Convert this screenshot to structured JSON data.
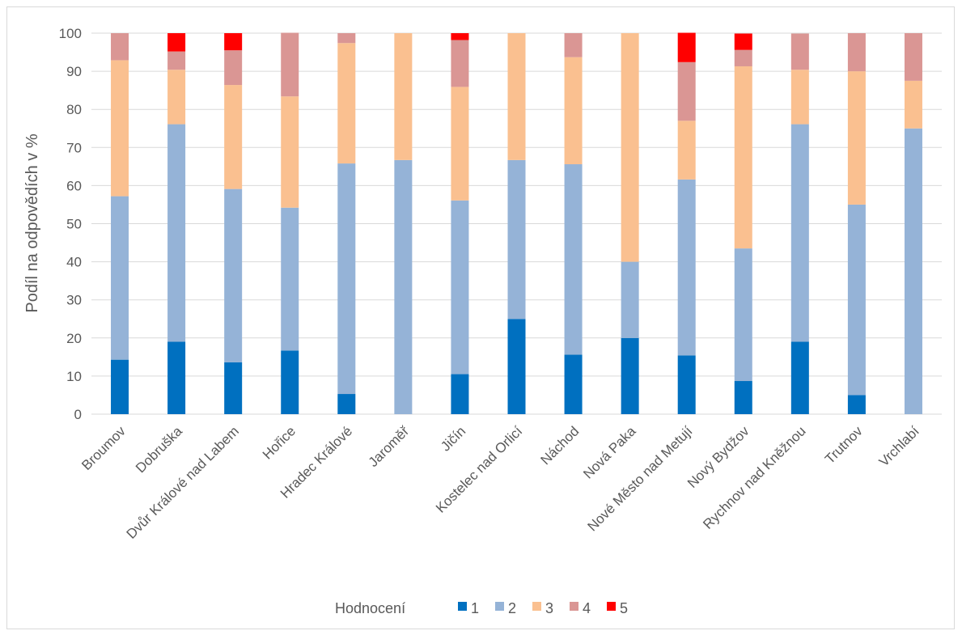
{
  "chart_data": {
    "type": "bar",
    "stacked": true,
    "categories": [
      "Broumov",
      "Dobruška",
      "Dvůr Králové nad Labem",
      "Hořice",
      "Hradec Králové",
      "Jaroměř",
      "Jičín",
      "Kostelec nad Orlicí",
      "Náchod",
      "Nová Paka",
      "Nové Město nad Metují",
      "Nový Bydžov",
      "Rychnov nad Kněžnou",
      "Trutnov",
      "Vrchlabí"
    ],
    "series": [
      {
        "name": "1",
        "color": "#0070c0",
        "values": [
          14.3,
          19.0,
          13.6,
          16.7,
          5.3,
          0,
          10.5,
          25.0,
          15.6,
          20.0,
          15.4,
          8.7,
          19.0,
          5.0,
          0
        ]
      },
      {
        "name": "2",
        "color": "#95b3d7",
        "values": [
          42.9,
          57.1,
          45.5,
          37.5,
          60.5,
          66.7,
          45.6,
          41.7,
          50.0,
          20.0,
          46.2,
          34.8,
          57.1,
          50.0,
          75.0
        ]
      },
      {
        "name": "3",
        "color": "#fac090",
        "values": [
          35.7,
          14.3,
          27.3,
          29.2,
          31.6,
          33.3,
          29.8,
          33.3,
          28.1,
          60.0,
          15.4,
          47.8,
          14.3,
          35.0,
          12.5
        ]
      },
      {
        "name": "4",
        "color": "#da9694",
        "values": [
          7.1,
          4.8,
          9.1,
          16.7,
          2.6,
          0,
          12.3,
          0,
          6.3,
          0,
          15.4,
          4.3,
          9.5,
          10.0,
          12.5
        ]
      },
      {
        "name": "5",
        "color": "#ff0000",
        "values": [
          0,
          4.8,
          4.5,
          0,
          0,
          0,
          1.8,
          0,
          0,
          0,
          7.7,
          4.3,
          0,
          0,
          0
        ]
      }
    ],
    "ylabel": "Podíl na odpovědích v %",
    "ylim": [
      0,
      100
    ],
    "yticks": [
      0,
      10,
      20,
      30,
      40,
      50,
      60,
      70,
      80,
      90,
      100
    ],
    "grid": true,
    "legend_title": "Hodnocení",
    "legend_position": "bottom"
  }
}
